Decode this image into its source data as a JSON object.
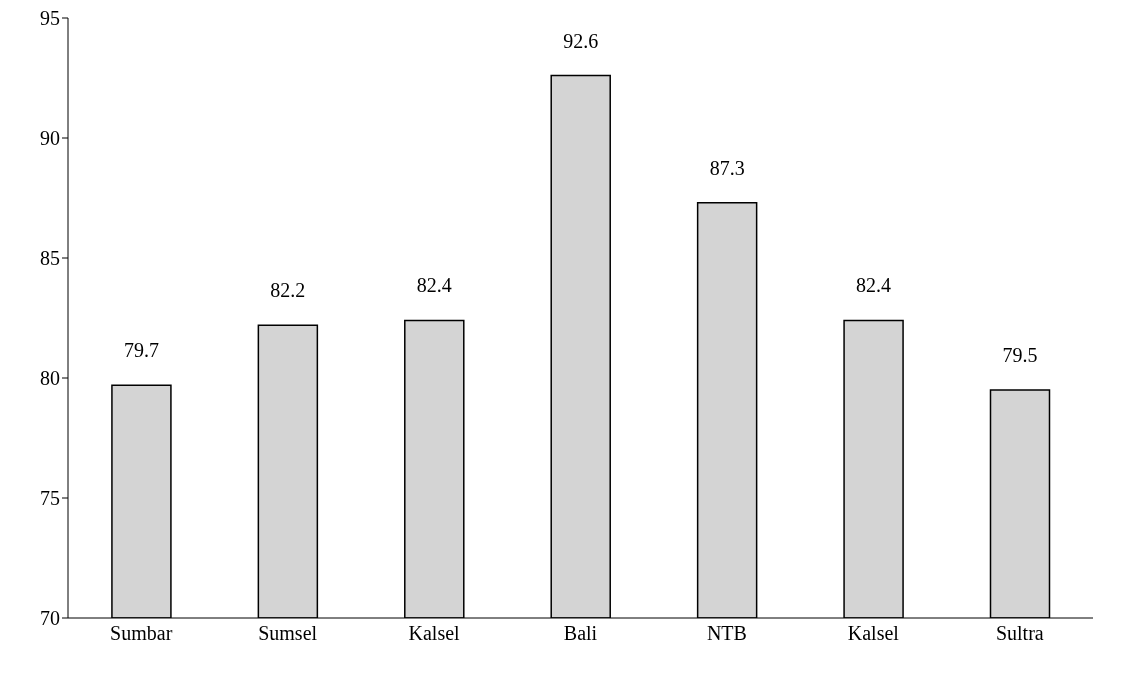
{
  "chart_data": {
    "type": "bar",
    "categories": [
      "Sumbar",
      "Sumsel",
      "Kalsel",
      "Bali",
      "NTB",
      "Kalsel",
      "Sultra"
    ],
    "values": [
      79.7,
      82.2,
      82.4,
      92.6,
      87.3,
      82.4,
      79.5
    ],
    "color": "#d4d4d4",
    "ylim": [
      70,
      95
    ],
    "yticks": [
      70,
      75,
      80,
      85,
      90,
      95
    ],
    "grid": false,
    "data_labels": true,
    "legend": false
  }
}
